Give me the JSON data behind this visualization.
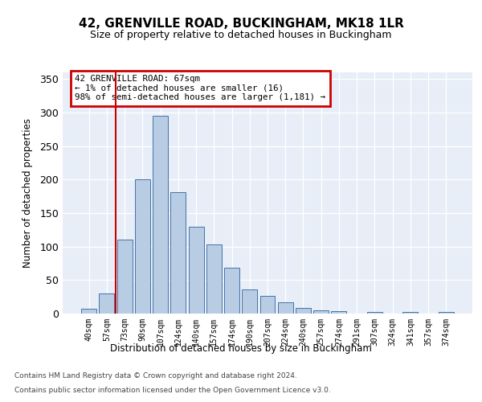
{
  "title": "42, GRENVILLE ROAD, BUCKINGHAM, MK18 1LR",
  "subtitle": "Size of property relative to detached houses in Buckingham",
  "xlabel": "Distribution of detached houses by size in Buckingham",
  "ylabel": "Number of detached properties",
  "footnote1": "Contains HM Land Registry data © Crown copyright and database right 2024.",
  "footnote2": "Contains public sector information licensed under the Open Government Licence v3.0.",
  "categories": [
    "40sqm",
    "57sqm",
    "73sqm",
    "90sqm",
    "107sqm",
    "124sqm",
    "140sqm",
    "157sqm",
    "174sqm",
    "190sqm",
    "207sqm",
    "224sqm",
    "240sqm",
    "257sqm",
    "274sqm",
    "291sqm",
    "307sqm",
    "324sqm",
    "341sqm",
    "357sqm",
    "374sqm"
  ],
  "values": [
    7,
    30,
    110,
    200,
    295,
    181,
    130,
    103,
    68,
    36,
    26,
    17,
    8,
    5,
    4,
    0,
    2,
    0,
    2,
    0,
    2
  ],
  "bar_color": "#b8cce4",
  "bar_edge_color": "#4472a8",
  "bg_color": "#e8eef8",
  "grid_color": "#ffffff",
  "vline_color": "#cc0000",
  "vline_pos": 1.5,
  "annotation_line1": "42 GRENVILLE ROAD: 67sqm",
  "annotation_line2": "← 1% of detached houses are smaller (16)",
  "annotation_line3": "98% of semi-detached houses are larger (1,181) →",
  "annotation_box_edgecolor": "#cc0000",
  "ylim_max": 360,
  "yticks": [
    0,
    50,
    100,
    150,
    200,
    250,
    300,
    350
  ]
}
